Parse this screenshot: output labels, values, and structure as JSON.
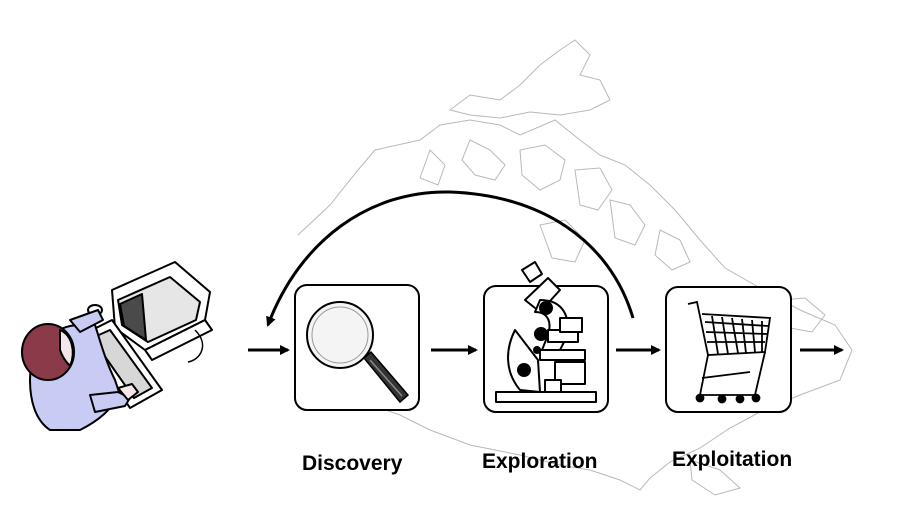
{
  "stages": [
    {
      "label": "Discovery",
      "icon": "magnifying-glass-icon"
    },
    {
      "label": "Exploration",
      "icon": "microscope-icon"
    },
    {
      "label": "Exploitation",
      "icon": "shopping-cart-icon"
    }
  ],
  "figures": {
    "user": "person-at-computer-icon",
    "background": "canada-map-outline"
  },
  "colors": {
    "person_hair": "#8b3a4a",
    "person_shirt": "#c8ccf4",
    "person_skin": "#f3e7ec",
    "map_outline": "#b9b9b9",
    "stroke": "#000000"
  }
}
